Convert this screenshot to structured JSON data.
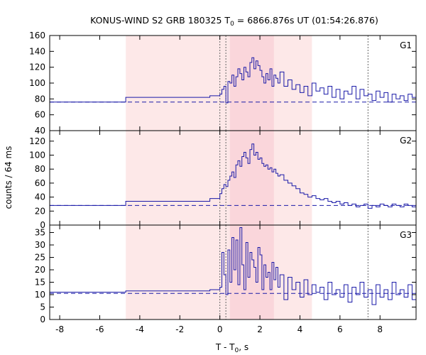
{
  "chart_data": {
    "type": "line",
    "title_main": "KONUS-WIND S2 GRB 180325 T",
    "title_sub": "0",
    "title_rest": " = 6866.876s UT (01:54:26.876)",
    "ylabel": "counts / 64 ms",
    "xlabel_main": "T - T",
    "xlabel_sub": "0",
    "xlabel_rest": ", s",
    "xlim": [
      -8.5,
      9.8
    ],
    "xticks": [
      -8,
      -6,
      -4,
      -2,
      0,
      2,
      4,
      6,
      8
    ],
    "shaded_intervals": [
      {
        "from": -4.7,
        "to": 4.6,
        "color": "#fde8e8"
      },
      {
        "from": 0.5,
        "to": 2.7,
        "color": "#fad6db"
      }
    ],
    "vertical_markers": [
      0.0,
      0.3,
      7.4
    ],
    "colors": {
      "data": "#1a1aa8",
      "background": "#1a1aa8",
      "marker": "#666666"
    },
    "panels": [
      {
        "name": "G1",
        "ylim": [
          40,
          160
        ],
        "yticks": [
          40,
          60,
          80,
          100,
          120,
          140,
          160
        ],
        "background_level": 76,
        "series": [
          {
            "name": "G1",
            "x": [
              -8.5,
              -4.7,
              -4.7,
              -0.5,
              -0.5,
              0.0,
              0.1,
              0.2,
              0.3,
              0.4,
              0.5,
              0.6,
              0.7,
              0.8,
              0.9,
              1.0,
              1.1,
              1.2,
              1.3,
              1.4,
              1.5,
              1.6,
              1.7,
              1.8,
              1.9,
              2.0,
              2.1,
              2.2,
              2.3,
              2.4,
              2.5,
              2.6,
              2.7,
              2.8,
              2.9,
              3.0,
              3.2,
              3.4,
              3.6,
              3.8,
              4.0,
              4.2,
              4.4,
              4.6,
              4.8,
              5.0,
              5.2,
              5.4,
              5.6,
              5.8,
              6.0,
              6.2,
              6.4,
              6.6,
              6.8,
              7.0,
              7.2,
              7.4,
              7.6,
              7.8,
              8.0,
              8.2,
              8.4,
              8.6,
              8.8,
              9.0,
              9.2,
              9.4,
              9.6,
              9.8
            ],
            "y": [
              76,
              76,
              82,
              82,
              84,
              86,
              92,
              96,
              75,
              102,
              100,
              110,
              96,
              108,
              118,
              112,
              104,
              120,
              114,
              108,
              126,
              132,
              118,
              128,
              122,
              116,
              108,
              100,
              112,
              104,
              118,
              96,
              110,
              106,
              100,
              114,
              96,
              104,
              92,
              98,
              88,
              96,
              84,
              100,
              90,
              94,
              86,
              96,
              82,
              92,
              80,
              90,
              86,
              96,
              80,
              92,
              84,
              86,
              78,
              90,
              82,
              88,
              76,
              86,
              80,
              84,
              78,
              86,
              82,
              80
            ]
          }
        ]
      },
      {
        "name": "G2",
        "ylim": [
          0,
          135
        ],
        "yticks": [
          0,
          20,
          40,
          60,
          80,
          100,
          120
        ],
        "background_level": 28,
        "series": [
          {
            "name": "G2",
            "x": [
              -8.5,
              -4.7,
              -4.7,
              -0.5,
              -0.5,
              0.0,
              0.1,
              0.2,
              0.3,
              0.4,
              0.5,
              0.6,
              0.7,
              0.8,
              0.9,
              1.0,
              1.1,
              1.2,
              1.3,
              1.4,
              1.5,
              1.6,
              1.7,
              1.8,
              1.9,
              2.0,
              2.1,
              2.2,
              2.3,
              2.4,
              2.5,
              2.6,
              2.7,
              2.8,
              2.9,
              3.0,
              3.2,
              3.4,
              3.6,
              3.8,
              4.0,
              4.2,
              4.4,
              4.6,
              4.8,
              5.0,
              5.2,
              5.4,
              5.6,
              5.8,
              6.0,
              6.2,
              6.4,
              6.6,
              6.8,
              7.0,
              7.2,
              7.4,
              7.6,
              7.8,
              8.0,
              8.2,
              8.4,
              8.6,
              8.8,
              9.0,
              9.2,
              9.4,
              9.6,
              9.8
            ],
            "y": [
              28,
              28,
              34,
              34,
              38,
              45,
              52,
              58,
              55,
              64,
              70,
              76,
              68,
              86,
              92,
              84,
              98,
              104,
              96,
              88,
              108,
              116,
              100,
              104,
              94,
              96,
              88,
              84,
              86,
              80,
              82,
              76,
              80,
              74,
              70,
              72,
              64,
              60,
              56,
              52,
              46,
              44,
              40,
              42,
              38,
              36,
              38,
              34,
              32,
              34,
              30,
              32,
              28,
              30,
              26,
              28,
              30,
              24,
              28,
              26,
              30,
              28,
              26,
              30,
              28,
              26,
              30,
              28,
              26,
              28
            ]
          }
        ]
      },
      {
        "name": "G3",
        "ylim": [
          0,
          38
        ],
        "yticks": [
          0,
          5,
          10,
          15,
          20,
          25,
          30,
          35
        ],
        "background_level": 10.5,
        "series": [
          {
            "name": "G3",
            "x": [
              -8.5,
              -4.7,
              -4.7,
              -0.5,
              -0.5,
              0.0,
              0.1,
              0.2,
              0.3,
              0.4,
              0.5,
              0.6,
              0.7,
              0.8,
              0.9,
              1.0,
              1.1,
              1.2,
              1.3,
              1.4,
              1.5,
              1.6,
              1.7,
              1.8,
              1.9,
              2.0,
              2.1,
              2.2,
              2.3,
              2.4,
              2.5,
              2.6,
              2.7,
              2.8,
              2.9,
              3.0,
              3.2,
              3.4,
              3.6,
              3.8,
              4.0,
              4.2,
              4.4,
              4.6,
              4.8,
              5.0,
              5.2,
              5.4,
              5.6,
              5.8,
              6.0,
              6.2,
              6.4,
              6.6,
              6.8,
              7.0,
              7.2,
              7.4,
              7.6,
              7.8,
              8.0,
              8.2,
              8.4,
              8.6,
              8.8,
              9.0,
              9.2,
              9.4,
              9.6,
              9.8
            ],
            "y": [
              11,
              11,
              11.5,
              11.5,
              12,
              13,
              27,
              18,
              10,
              28,
              15,
              33,
              20,
              32,
              14,
              37,
              22,
              12,
              31,
              17,
              27,
              24,
              21,
              15,
              29,
              26,
              12,
              22,
              17,
              19,
              12,
              23,
              16,
              21,
              13,
              18,
              8,
              17,
              12,
              15,
              9,
              16,
              10,
              14,
              11,
              13,
              8,
              15,
              10,
              12,
              9,
              14,
              7,
              13,
              10,
              15,
              9,
              12,
              6,
              14,
              9,
              12,
              8,
              15,
              10,
              12,
              9,
              14,
              8,
              11
            ]
          }
        ]
      }
    ]
  }
}
